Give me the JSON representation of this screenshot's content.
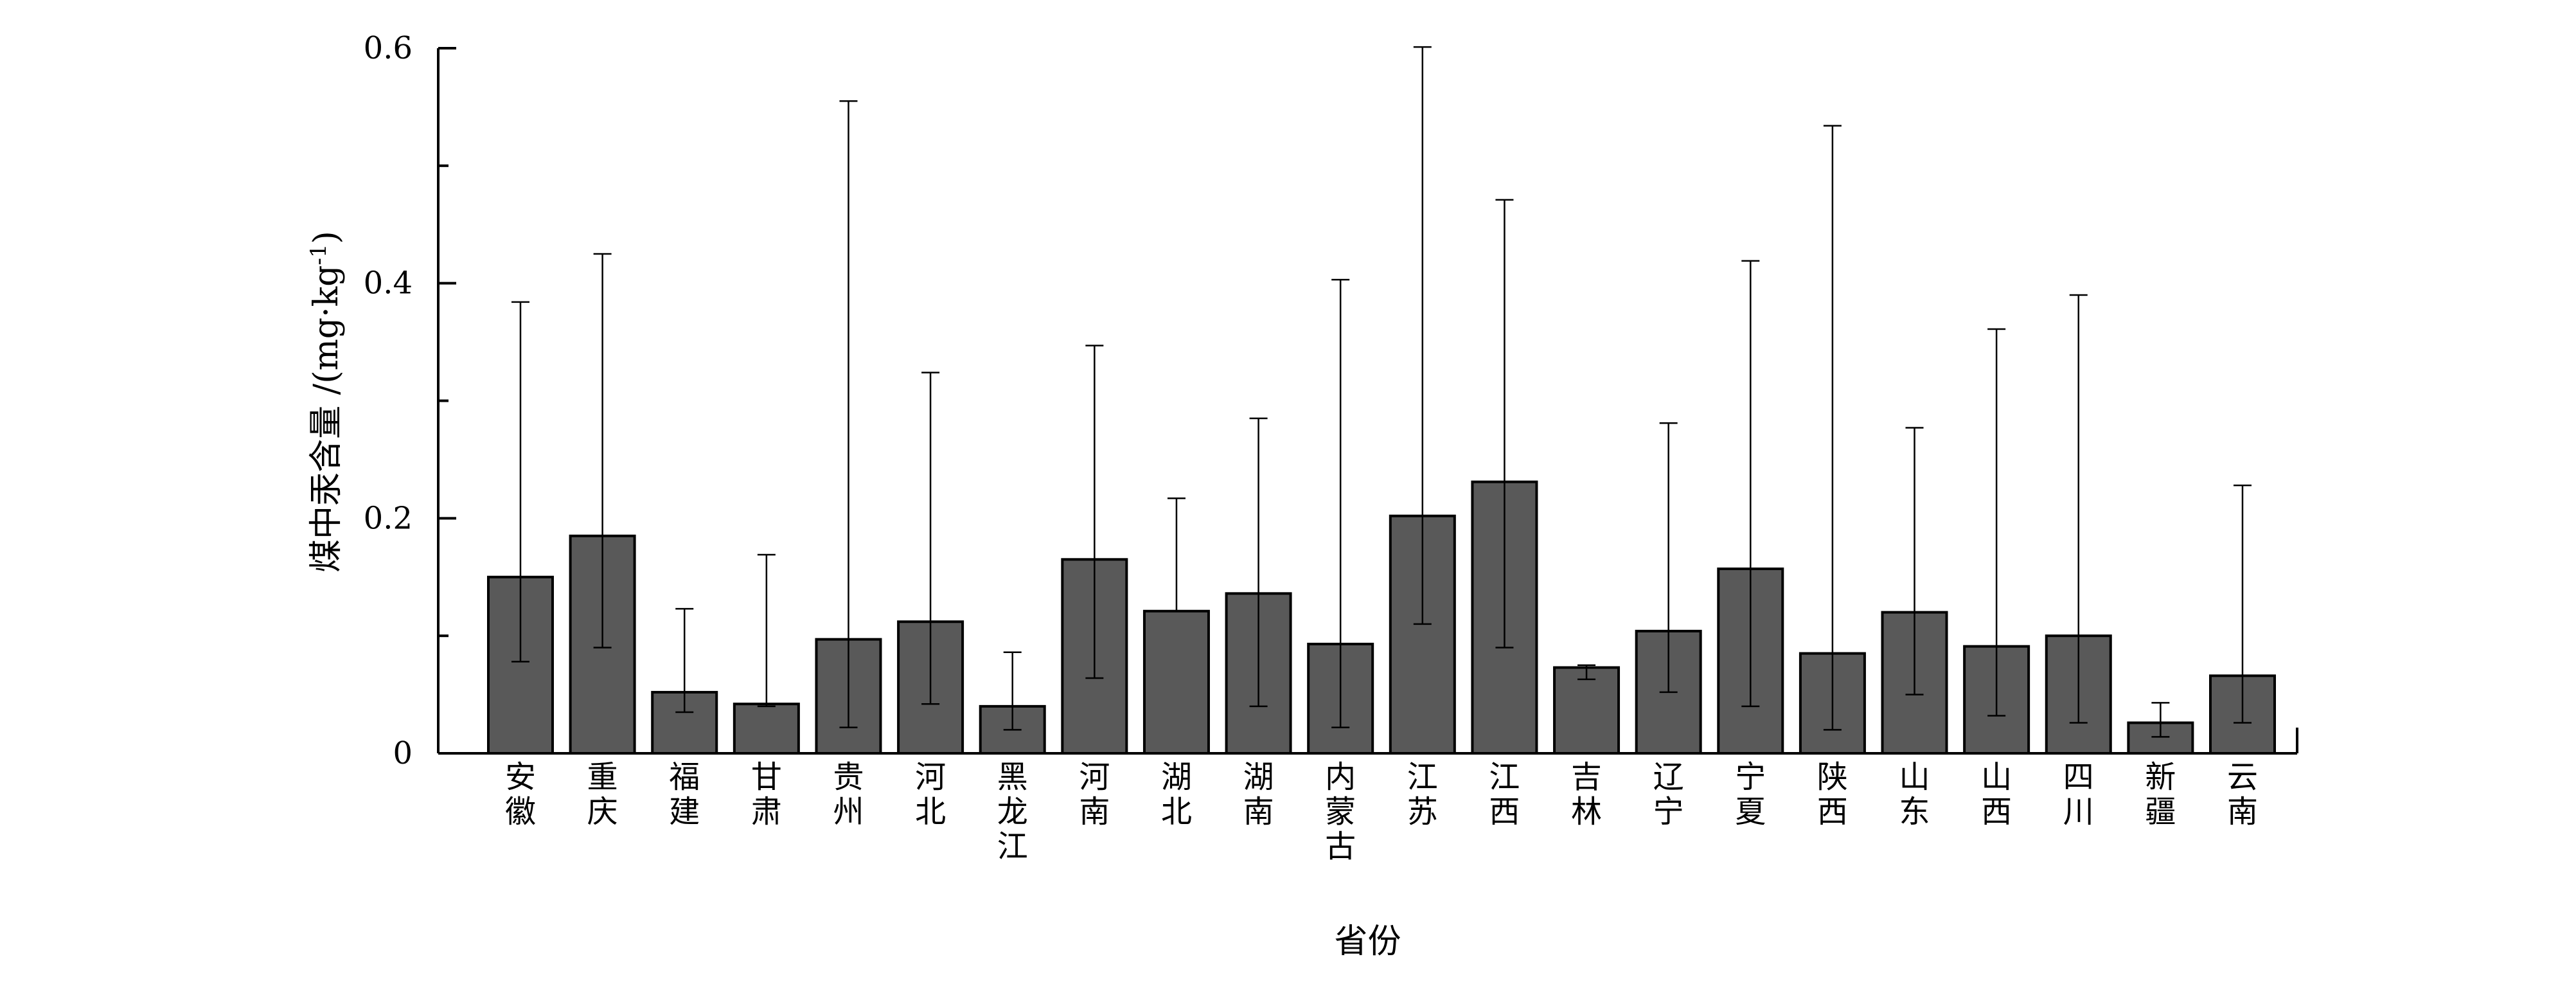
{
  "chart_data": {
    "type": "bar",
    "title": "",
    "xlabel": "省份",
    "ylabel_main": "煤中汞含量 /(mg·kg",
    "ylabel_sup": "-1",
    "ylabel_end": ")",
    "ylim": [
      0,
      0.6
    ],
    "yticks": [
      0,
      0.2,
      0.4,
      0.6
    ],
    "ytick_labels": [
      "0",
      "0.2",
      "0.4",
      "0.6"
    ],
    "categories": [
      "安徽",
      "重庆",
      "福建",
      "甘肃",
      "贵州",
      "河北",
      "黑龙江",
      "河南",
      "湖北",
      "湖南",
      "内蒙古",
      "江苏",
      "江西",
      "吉林",
      "辽宁",
      "宁夏",
      "陕西",
      "山东",
      "山西",
      "四川",
      "新疆",
      "云南"
    ],
    "values": [
      0.15,
      0.185,
      0.052,
      0.042,
      0.097,
      0.112,
      0.04,
      0.165,
      0.121,
      0.136,
      0.093,
      0.202,
      0.231,
      0.073,
      0.104,
      0.157,
      0.085,
      0.12,
      0.091,
      0.1,
      0.026,
      0.066
    ],
    "error_low": [
      0.078,
      0.09,
      0.035,
      0.04,
      0.022,
      0.042,
      0.02,
      0.064,
      0.121,
      0.04,
      0.022,
      0.11,
      0.09,
      0.063,
      0.052,
      0.04,
      0.02,
      0.05,
      0.032,
      0.026,
      0.014,
      0.026
    ],
    "error_high": [
      0.384,
      0.425,
      0.123,
      0.169,
      0.555,
      0.324,
      0.086,
      0.347,
      0.217,
      0.285,
      0.403,
      0.601,
      0.471,
      0.075,
      0.281,
      0.419,
      0.534,
      0.277,
      0.361,
      0.39,
      0.043,
      0.228
    ],
    "bar_color": "#595959",
    "grid": false,
    "legend": "none"
  }
}
